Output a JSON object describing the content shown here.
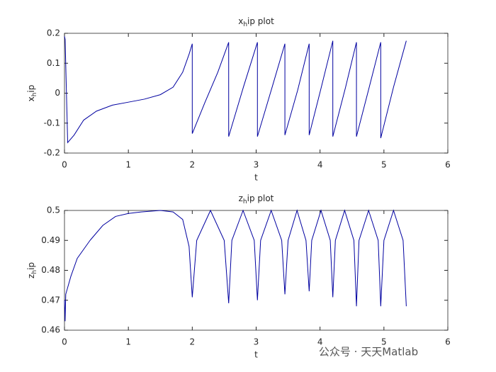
{
  "chart_data": [
    {
      "type": "line",
      "title": [
        "x",
        "h",
        "ip plot"
      ],
      "xlabel": "t",
      "ylabel": [
        "x",
        "h",
        "ip"
      ],
      "x": [
        0,
        0.01,
        0.05,
        0.15,
        0.3,
        0.5,
        0.75,
        1,
        1.25,
        1.5,
        1.7,
        1.85,
        1.95,
        2.0,
        2.0,
        2.2,
        2.4,
        2.57,
        2.57,
        2.8,
        3.02,
        3.02,
        3.25,
        3.45,
        3.45,
        3.65,
        3.83,
        3.83,
        4.02,
        4.2,
        4.2,
        4.4,
        4.57,
        4.57,
        4.77,
        4.95,
        4.95,
        5.15,
        5.35
      ],
      "series": [
        {
          "color": "#0000a0",
          "values": [
            0.19,
            0.18,
            -0.165,
            -0.14,
            -0.09,
            -0.06,
            -0.04,
            -0.03,
            -0.02,
            -0.005,
            0.02,
            0.07,
            0.13,
            0.165,
            -0.135,
            -0.03,
            0.07,
            0.17,
            -0.145,
            0.02,
            0.17,
            -0.145,
            0.02,
            0.165,
            -0.14,
            0.01,
            0.165,
            -0.14,
            0.02,
            0.175,
            -0.145,
            0.02,
            0.17,
            -0.145,
            0.02,
            0.17,
            -0.15,
            0.02,
            0.175
          ]
        }
      ],
      "xlim": [
        0,
        6
      ],
      "xticks": [
        0,
        1,
        2,
        3,
        4,
        5,
        6
      ],
      "ylim": [
        -0.2,
        0.2
      ],
      "yticks": [
        -0.2,
        -0.1,
        0,
        0.1,
        0.2
      ]
    },
    {
      "type": "line",
      "title": [
        "z",
        "h",
        "ip plot"
      ],
      "xlabel": "t",
      "ylabel": [
        "z",
        "h",
        "ip"
      ],
      "x": [
        0,
        0.01,
        0.02,
        0.1,
        0.2,
        0.4,
        0.6,
        0.8,
        1.0,
        1.2,
        1.5,
        1.7,
        1.85,
        1.95,
        2.0,
        2.07,
        2.285,
        2.5,
        2.57,
        2.62,
        2.795,
        2.97,
        3.02,
        3.07,
        3.235,
        3.4,
        3.45,
        3.5,
        3.64,
        3.78,
        3.83,
        3.87,
        4.015,
        4.16,
        4.2,
        4.24,
        4.385,
        4.53,
        4.57,
        4.61,
        4.76,
        4.91,
        4.95,
        5.0,
        5.15,
        5.3,
        5.35
      ],
      "series": [
        {
          "color": "#0000a0",
          "values": [
            0.47,
            0.463,
            0.472,
            0.478,
            0.484,
            0.49,
            0.495,
            0.498,
            0.499,
            0.4995,
            0.5,
            0.4995,
            0.497,
            0.488,
            0.471,
            0.49,
            0.5,
            0.49,
            0.469,
            0.49,
            0.5,
            0.49,
            0.47,
            0.49,
            0.5,
            0.49,
            0.472,
            0.49,
            0.5,
            0.49,
            0.473,
            0.49,
            0.5,
            0.49,
            0.471,
            0.49,
            0.5,
            0.49,
            0.468,
            0.49,
            0.5,
            0.49,
            0.468,
            0.49,
            0.5,
            0.49,
            0.468
          ]
        }
      ],
      "xlim": [
        0,
        6
      ],
      "xticks": [
        0,
        1,
        2,
        3,
        4,
        5,
        6
      ],
      "ylim": [
        0.46,
        0.5
      ],
      "yticks": [
        0.46,
        0.47,
        0.48,
        0.49,
        0.5
      ]
    }
  ],
  "watermark": "公众号 · 天天Matlab"
}
